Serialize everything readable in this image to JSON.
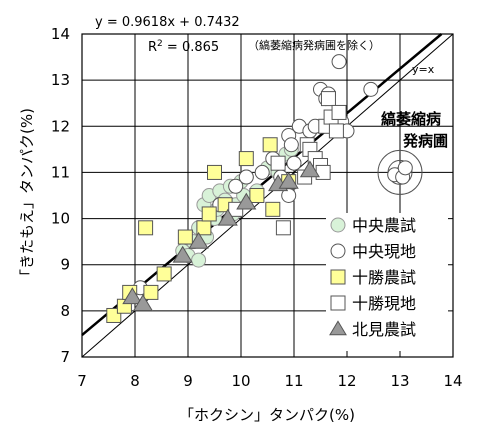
{
  "chart_data": {
    "type": "scatter",
    "xlabel": "「ホクシン」タンパク(%)",
    "ylabel": "「きたもえ」タンパク(%)",
    "xlim": [
      7,
      14
    ],
    "ylim": [
      7,
      14
    ],
    "x_ticks": [
      "7",
      "8",
      "9",
      "10",
      "11",
      "12",
      "13",
      "14"
    ],
    "y_ticks": [
      "7",
      "8",
      "9",
      "10",
      "11",
      "12",
      "13",
      "14"
    ],
    "grid": true,
    "legend_position": "right",
    "regression": {
      "equation": "y = 0.9618x + 0.7432",
      "r2_label": "R",
      "r2_sup": "2",
      "r2_value": " = 0.865",
      "note": "（縞萎縮病発病圃を除く）",
      "slope": 0.9618,
      "intercept": 0.7432
    },
    "reference_line": {
      "label": "y=x"
    },
    "callout": {
      "line1": "縞萎縮病",
      "line2": "発病圃"
    },
    "series": [
      {
        "name": "中央農試",
        "marker": "circle",
        "fill": "#d8f2d8",
        "stroke": "#999999",
        "points": [
          [
            8.9,
            9.3
          ],
          [
            9.0,
            9.2
          ],
          [
            9.1,
            9.5
          ],
          [
            9.2,
            9.1
          ],
          [
            9.2,
            9.8
          ],
          [
            9.3,
            10.3
          ],
          [
            9.35,
            9.6
          ],
          [
            9.4,
            10.5
          ],
          [
            9.5,
            10.0
          ],
          [
            9.55,
            10.2
          ],
          [
            9.6,
            10.6
          ],
          [
            9.7,
            10.4
          ],
          [
            9.8,
            10.7
          ],
          [
            9.85,
            10.1
          ],
          [
            9.9,
            10.3
          ],
          [
            10.0,
            10.8
          ],
          [
            10.05,
            10.5
          ],
          [
            10.1,
            10.9
          ],
          [
            10.3,
            10.6
          ],
          [
            10.5,
            11.1
          ],
          [
            10.7,
            11.0
          ],
          [
            10.85,
            11.4
          ],
          [
            10.95,
            11.5
          ]
        ]
      },
      {
        "name": "中央現地",
        "marker": "circle",
        "fill": "#ffffff",
        "stroke": "#555555",
        "points": [
          [
            8.1,
            8.5
          ],
          [
            9.6,
            10.3
          ],
          [
            9.9,
            10.7
          ],
          [
            10.1,
            10.9
          ],
          [
            10.4,
            11.0
          ],
          [
            10.6,
            11.3
          ],
          [
            10.9,
            11.8
          ],
          [
            10.95,
            11.6
          ],
          [
            11.0,
            11.2
          ],
          [
            11.1,
            12.0
          ],
          [
            11.3,
            11.9
          ],
          [
            11.4,
            12.0
          ],
          [
            11.5,
            12.8
          ],
          [
            11.6,
            12.6
          ],
          [
            11.65,
            12.7
          ],
          [
            11.85,
            13.4
          ],
          [
            11.9,
            12.1
          ],
          [
            12.0,
            11.9
          ],
          [
            12.45,
            12.8
          ],
          [
            12.9,
            10.95
          ],
          [
            13.05,
            10.9
          ],
          [
            13.1,
            11.1
          ],
          [
            10.9,
            10.5
          ],
          [
            10.75,
            10.9
          ]
        ]
      },
      {
        "name": "十勝農試",
        "marker": "square",
        "fill": "#ffff99",
        "stroke": "#555555",
        "points": [
          [
            7.6,
            7.9
          ],
          [
            7.8,
            8.1
          ],
          [
            7.9,
            8.4
          ],
          [
            8.3,
            8.4
          ],
          [
            8.55,
            8.8
          ],
          [
            8.2,
            9.8
          ],
          [
            8.95,
            9.6
          ],
          [
            9.3,
            9.8
          ],
          [
            9.4,
            10.1
          ],
          [
            9.5,
            11.0
          ],
          [
            9.7,
            10.3
          ],
          [
            10.1,
            11.3
          ],
          [
            10.3,
            10.5
          ],
          [
            10.55,
            11.6
          ],
          [
            10.6,
            10.2
          ],
          [
            10.9,
            10.8
          ]
        ]
      },
      {
        "name": "十勝現地",
        "marker": "square",
        "fill": "#ffffff",
        "stroke": "#555555",
        "points": [
          [
            9.9,
            10.2
          ],
          [
            10.7,
            11.2
          ],
          [
            10.8,
            9.8
          ],
          [
            11.25,
            11.6
          ],
          [
            11.3,
            11.5
          ],
          [
            11.4,
            11.3
          ],
          [
            11.5,
            11.15
          ],
          [
            11.55,
            11.0
          ],
          [
            11.6,
            12.0
          ],
          [
            11.65,
            12.6
          ],
          [
            11.7,
            12.2
          ],
          [
            11.8,
            11.9
          ],
          [
            11.85,
            12.3
          ],
          [
            11.2,
            10.9
          ]
        ]
      },
      {
        "name": "北見農試",
        "marker": "triangle",
        "fill": "#999999",
        "stroke": "#555555",
        "points": [
          [
            7.95,
            8.3
          ],
          [
            8.15,
            8.15
          ],
          [
            8.9,
            9.2
          ],
          [
            9.2,
            9.5
          ],
          [
            9.75,
            10.0
          ],
          [
            10.1,
            10.35
          ],
          [
            10.7,
            10.75
          ],
          [
            10.9,
            10.8
          ],
          [
            11.3,
            11.05
          ]
        ]
      }
    ]
  }
}
